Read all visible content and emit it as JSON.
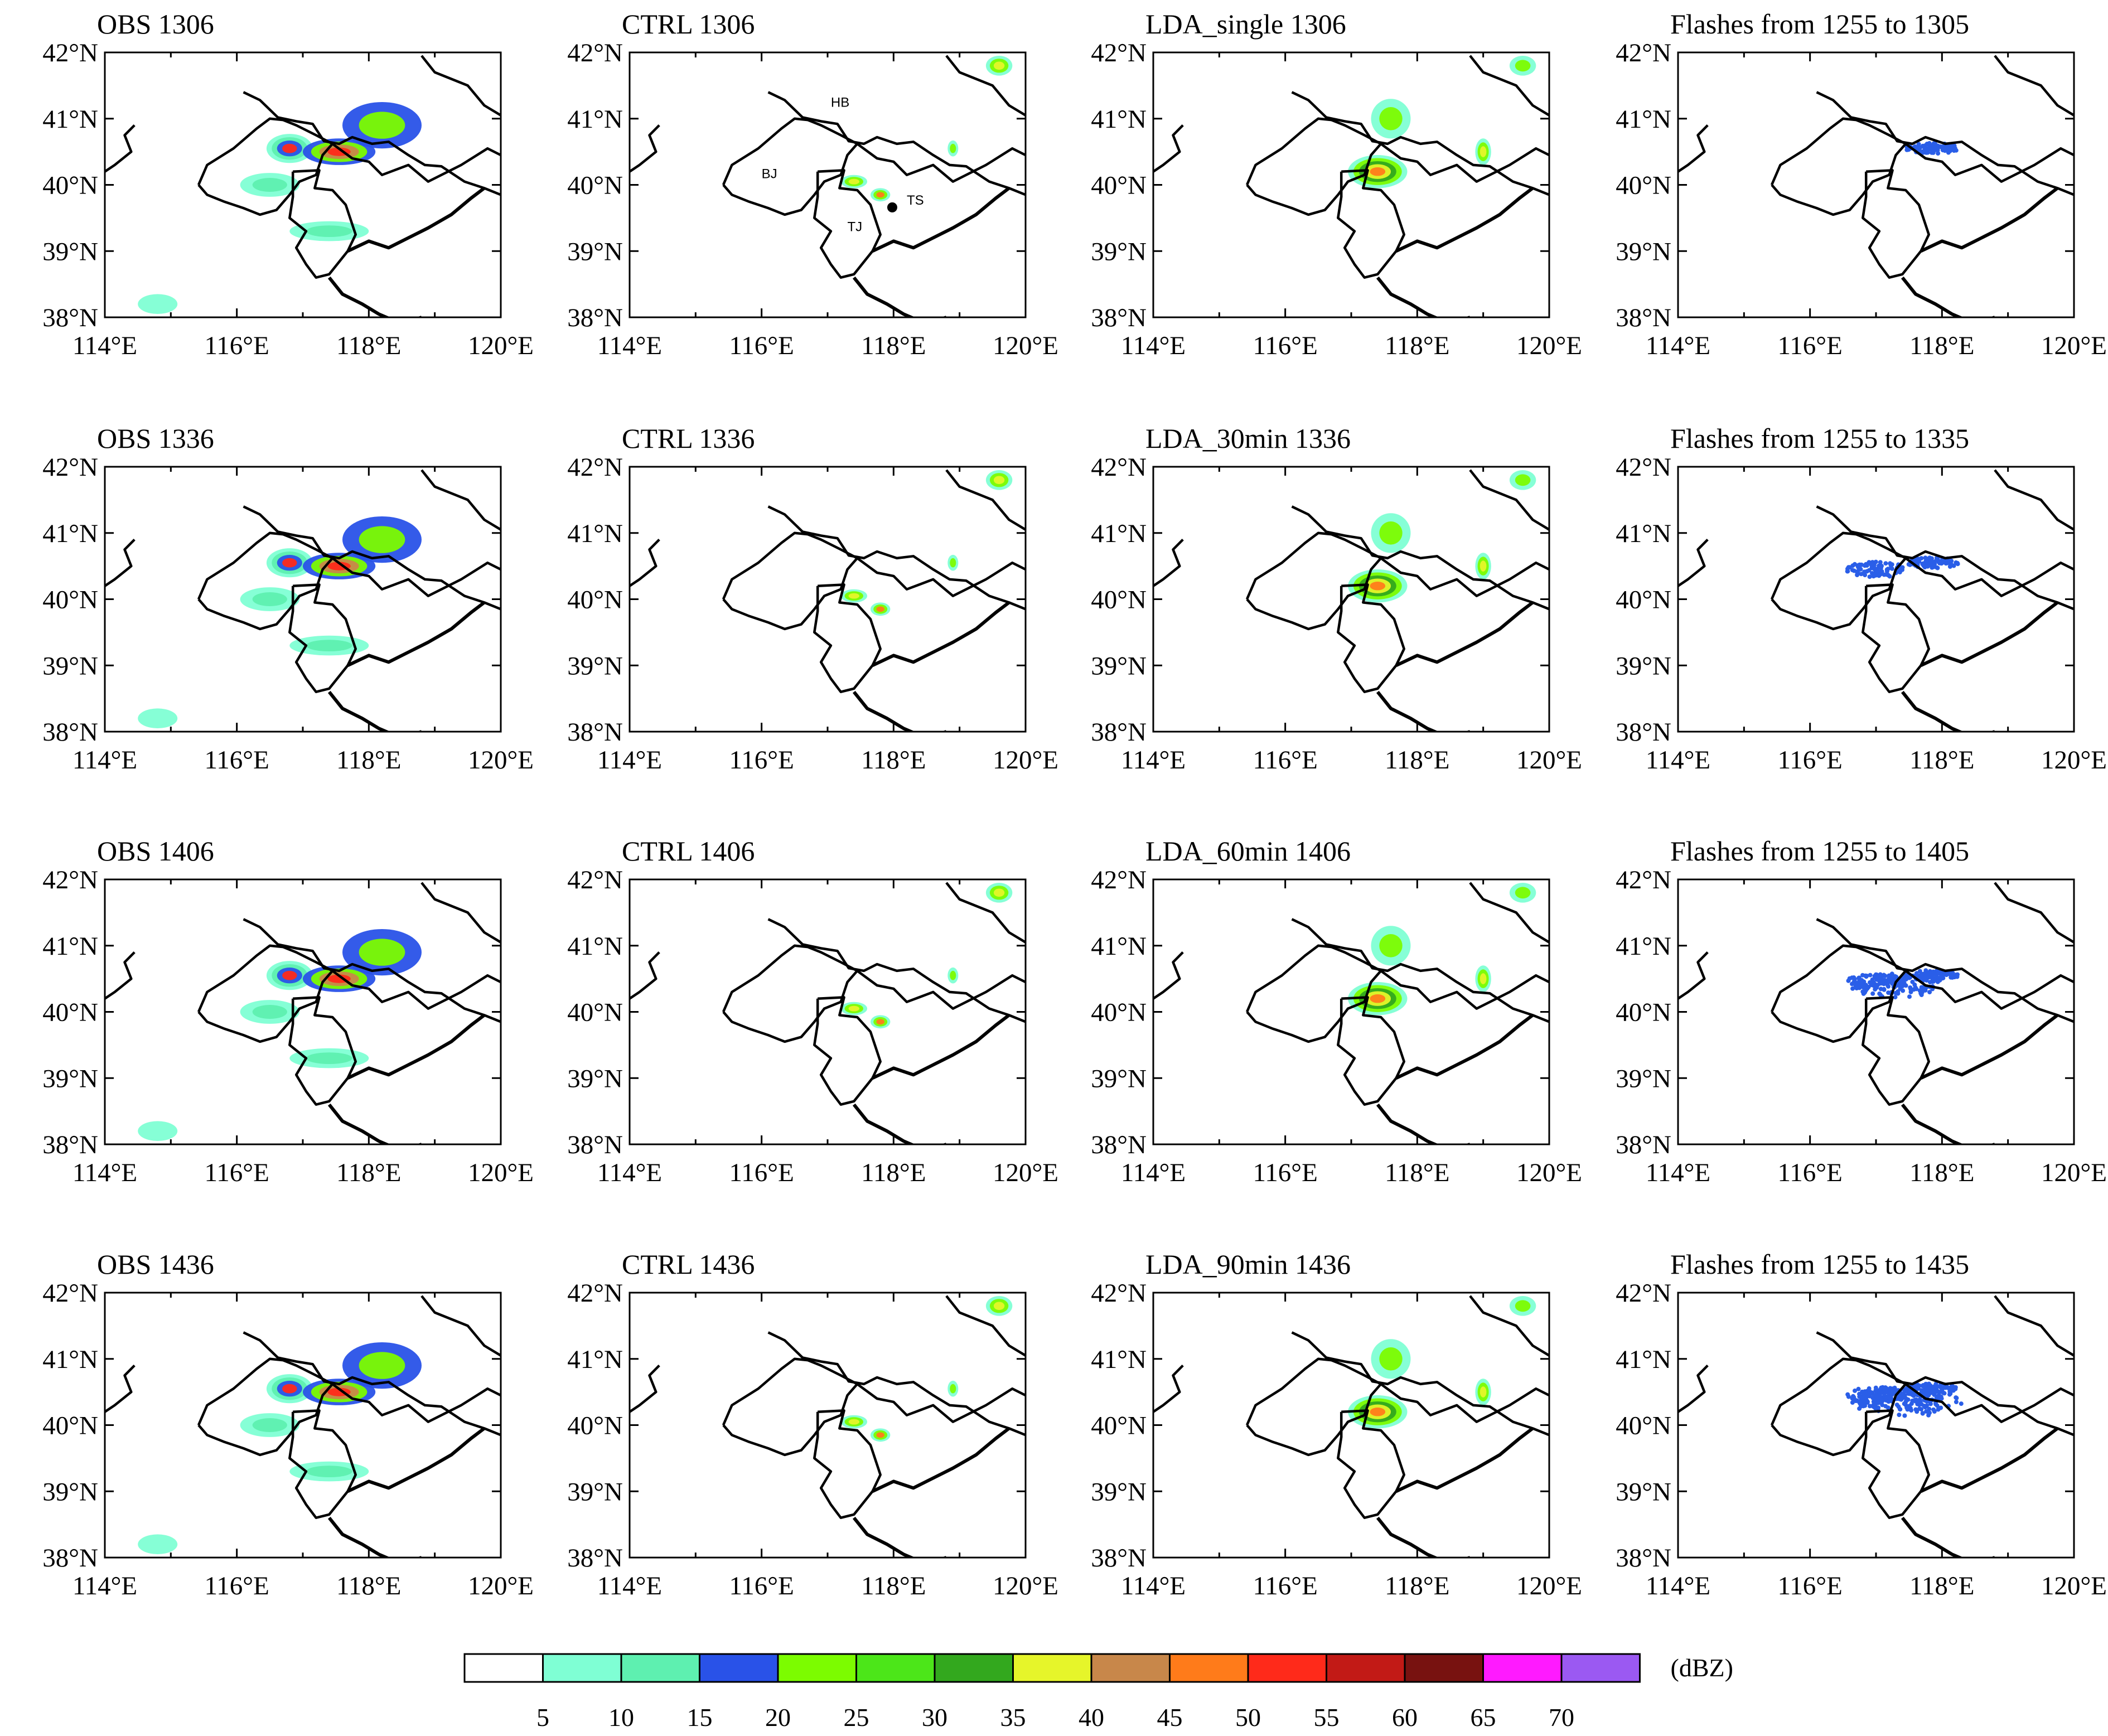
{
  "figure": {
    "axis_labels": {
      "lat": [
        "42°N",
        "41°N",
        "40°N",
        "39°N",
        "38°N"
      ],
      "lon": [
        "114°E",
        "116°E",
        "118°E",
        "120°E"
      ]
    },
    "map_labels": [
      "HB",
      "BJ",
      "TJ",
      "TS"
    ],
    "rows": [
      {
        "titles": [
          "OBS 1306",
          "CTRL 1306",
          "LDA_single 1306",
          "Flashes from 1255 to 1305"
        ]
      },
      {
        "titles": [
          "OBS 1336",
          "CTRL 1336",
          "LDA_30min 1336",
          "Flashes from 1255 to 1335"
        ]
      },
      {
        "titles": [
          "OBS 1406",
          "CTRL 1406",
          "LDA_60min 1406",
          "Flashes from 1255 to 1405"
        ]
      },
      {
        "titles": [
          "OBS 1436",
          "CTRL 1436",
          "LDA_90min 1436",
          "Flashes from 1255 to 1435"
        ]
      }
    ]
  },
  "colorbar": {
    "unit": "(dBZ)",
    "ticks": [
      "5",
      "10",
      "15",
      "20",
      "25",
      "30",
      "35",
      "40",
      "45",
      "50",
      "55",
      "60",
      "65",
      "70"
    ],
    "colors": [
      "#ffffff",
      "#7fffd4",
      "#5ef0b0",
      "#2952e8",
      "#7cfc00",
      "#4ce619",
      "#33a81e",
      "#e6f52a",
      "#c8874a",
      "#ff7b1a",
      "#ff2a1a",
      "#c21a16",
      "#781210",
      "#ff1aff",
      "#9b59f2"
    ]
  },
  "chart_data": {
    "type": "map-panel-grid",
    "variable": "radar reflectivity",
    "unit": "dBZ",
    "lat_range": [
      38,
      42
    ],
    "lon_range": [
      114,
      120
    ],
    "flash_color": "#2a5ee8"
  }
}
